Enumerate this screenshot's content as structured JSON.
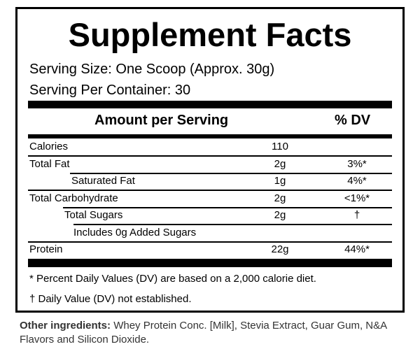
{
  "header": {
    "title": "Supplement Facts",
    "serving_size": "Serving Size:  One Scoop (Approx. 30g)",
    "servings_per_container": "Serving Per Container: 30"
  },
  "table": {
    "columns": [
      "Amount per Serving",
      "% DV"
    ],
    "rows": [
      {
        "name": "Calories",
        "amount": "110"
      },
      {
        "name": "Total Fat",
        "amount": "2g",
        "dv": "3%*"
      },
      {
        "name": "Saturated Fat",
        "amount": "1g",
        "dv": "4%*"
      },
      {
        "name": "Total Carbohydrate",
        "amount": "2g",
        "dv": "<1%*"
      },
      {
        "name": "Total Sugars",
        "amount": "2g",
        "dv": "†"
      },
      {
        "name": "Includes 0g Added Sugars"
      },
      {
        "name": "Protein",
        "amount": "22g",
        "dv": "44%*"
      }
    ]
  },
  "footnotes": [
    "* Percent Daily Values (DV) are based on a 2,000 calorie diet.",
    "† Daily Value (DV) not established."
  ],
  "ingredients": {
    "label": "Other ingredients:",
    "text": "Whey Protein Conc. [Milk], Stevia Extract, Guar Gum, N&A Flavors and Silicon Dioxide."
  }
}
